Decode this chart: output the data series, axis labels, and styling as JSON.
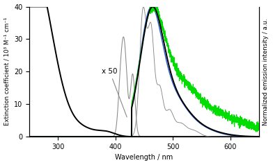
{
  "xlim": [
    250,
    650
  ],
  "ylim_left": [
    0,
    40
  ],
  "ylim_right": [
    0,
    1.0
  ],
  "xlabel": "Wavelength / nm",
  "ylabel_left": "Extinction coefficient / 10³ M⁻¹ cm⁻¹",
  "ylabel_right": "Normalized emission intensity / a.u.",
  "xticks": [
    300,
    400,
    500,
    600
  ],
  "yticks_left": [
    0,
    10,
    20,
    30,
    40
  ],
  "annotation": "x 50",
  "background_color": "#ffffff",
  "absorption_color": "#000000",
  "absorption_scaled_color": "#888888",
  "emission_bold_color": "#000000",
  "emission_thin_color": "#888888",
  "emission_blue_color": "#3060CC",
  "emission_green_color": "#00DD00"
}
